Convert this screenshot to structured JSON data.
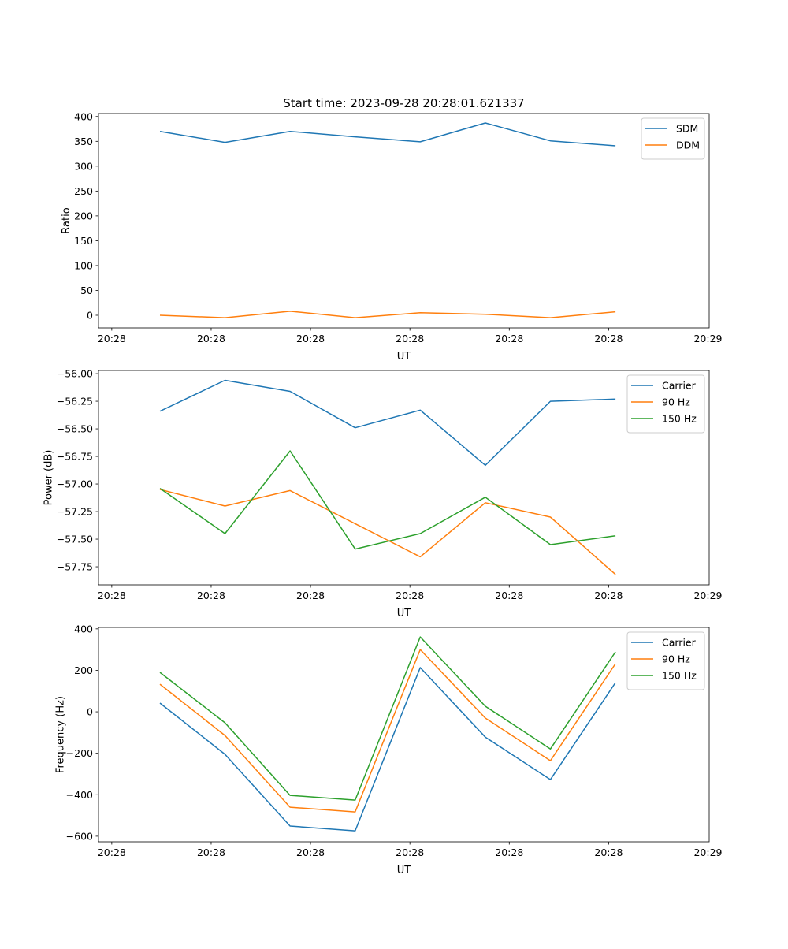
{
  "chart_data": [
    {
      "type": "line",
      "title": "Start time: 2023-09-28 20:28:01.621337",
      "xlabel": "UT",
      "ylabel": "Ratio",
      "x": [
        0,
        1,
        2,
        3,
        4,
        5,
        6,
        7
      ],
      "xlim": [
        -0.944,
        8.44
      ],
      "xticks": [
        -0.74,
        0.787,
        2.314,
        3.841,
        5.368,
        6.895,
        8.422
      ],
      "xtick_labels": [
        "20:28",
        "20:28",
        "20:28",
        "20:28",
        "20:28",
        "20:28",
        "20:29"
      ],
      "ylim": [
        -25.4,
        406
      ],
      "yticks": [
        0,
        50,
        100,
        150,
        200,
        250,
        300,
        350,
        400
      ],
      "ytick_labels": [
        "0",
        "50",
        "100",
        "150",
        "200",
        "250",
        "300",
        "350",
        "400"
      ],
      "legend": "top-right",
      "series": [
        {
          "name": "SDM",
          "color": "#1f77b4",
          "values": [
            370,
            348,
            370,
            359,
            349,
            387,
            351,
            341
          ]
        },
        {
          "name": "DDM",
          "color": "#ff7f0e",
          "values": [
            0,
            -5,
            8,
            -5,
            5,
            2,
            -5,
            7
          ]
        }
      ]
    },
    {
      "type": "line",
      "title": "",
      "xlabel": "UT",
      "ylabel": "Power (dB)",
      "x": [
        0,
        1,
        2,
        3,
        4,
        5,
        6,
        7
      ],
      "xlim": [
        -0.944,
        8.44
      ],
      "xticks": [
        -0.74,
        0.787,
        2.314,
        3.841,
        5.368,
        6.895,
        8.422
      ],
      "xtick_labels": [
        "20:28",
        "20:28",
        "20:28",
        "20:28",
        "20:28",
        "20:28",
        "20:29"
      ],
      "ylim": [
        -57.914,
        -55.971
      ],
      "yticks": [
        -57.75,
        -57.5,
        -57.25,
        -57.0,
        -56.75,
        -56.5,
        -56.25,
        -56.0
      ],
      "ytick_labels": [
        "−57.75",
        "−57.50",
        "−57.25",
        "−57.00",
        "−56.75",
        "−56.50",
        "−56.25",
        "−56.00"
      ],
      "legend": "top-right",
      "series": [
        {
          "name": "Carrier",
          "color": "#1f77b4",
          "values": [
            -56.34,
            -56.06,
            -56.16,
            -56.49,
            -56.33,
            -56.83,
            -56.25,
            -56.23
          ]
        },
        {
          "name": "90 Hz",
          "color": "#ff7f0e",
          "values": [
            -57.05,
            -57.2,
            -57.06,
            -57.36,
            -57.66,
            -57.17,
            -57.3,
            -57.82
          ]
        },
        {
          "name": "150 Hz",
          "color": "#2ca02c",
          "values": [
            -57.04,
            -57.45,
            -56.7,
            -57.59,
            -57.45,
            -57.12,
            -57.55,
            -57.47
          ]
        }
      ]
    },
    {
      "type": "line",
      "title": "",
      "xlabel": "UT",
      "ylabel": "Frequency (Hz)",
      "x": [
        0,
        1,
        2,
        3,
        4,
        5,
        6,
        7
      ],
      "xlim": [
        -0.944,
        8.44
      ],
      "xticks": [
        -0.74,
        0.787,
        2.314,
        3.841,
        5.368,
        6.895,
        8.422
      ],
      "xtick_labels": [
        "20:28",
        "20:28",
        "20:28",
        "20:28",
        "20:28",
        "20:28",
        "20:29"
      ],
      "ylim": [
        -627,
        407
      ],
      "yticks": [
        -600,
        -400,
        -200,
        0,
        200,
        400
      ],
      "ytick_labels": [
        "−600",
        "−400",
        "−200",
        "0",
        "200",
        "400"
      ],
      "legend": "top-right",
      "series": [
        {
          "name": "Carrier",
          "color": "#1f77b4",
          "values": [
            42,
            -205,
            -551,
            -574,
            213,
            -122,
            -327,
            141
          ]
        },
        {
          "name": "90 Hz",
          "color": "#ff7f0e",
          "values": [
            133,
            -114,
            -460,
            -483,
            300,
            -30,
            -236,
            232
          ]
        },
        {
          "name": "150 Hz",
          "color": "#2ca02c",
          "values": [
            190,
            -53,
            -403,
            -426,
            361,
            27,
            -179,
            289
          ]
        }
      ]
    }
  ]
}
